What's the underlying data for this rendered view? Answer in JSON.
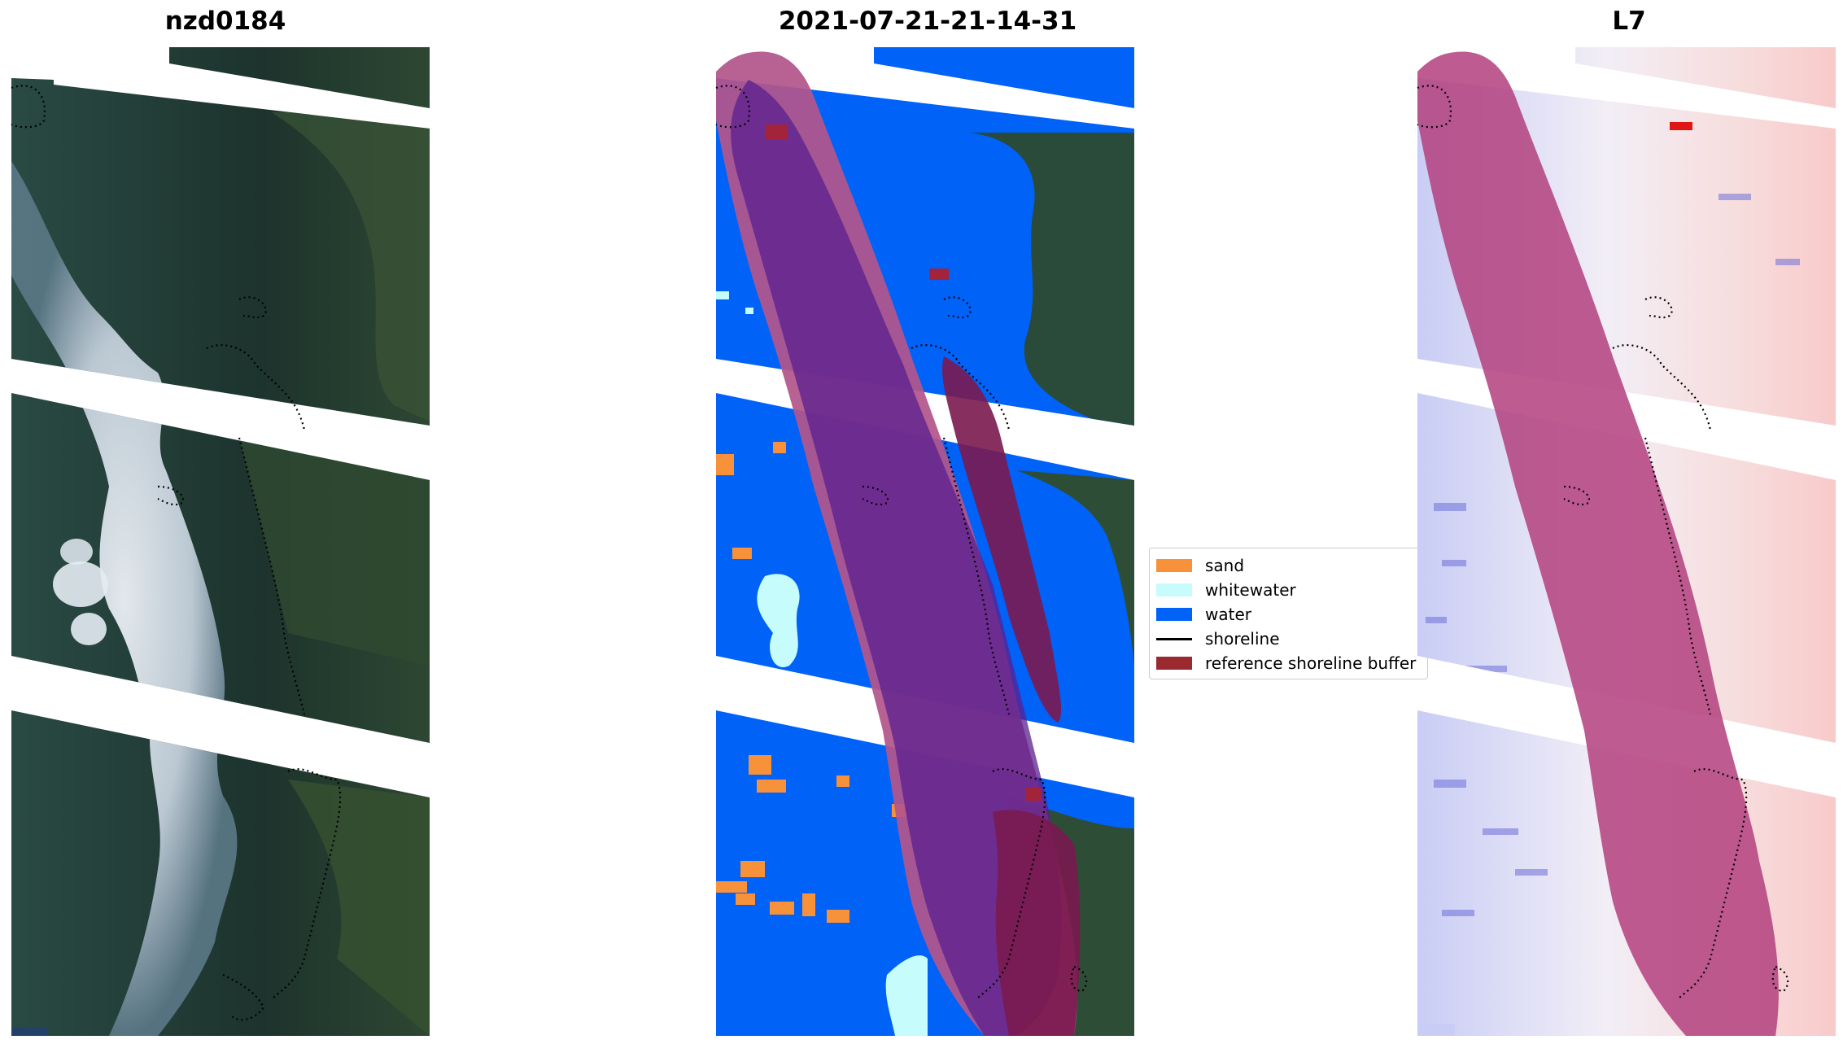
{
  "panels": [
    {
      "title": "nzd0184",
      "type": "rgb"
    },
    {
      "title": "2021-07-21-21-14-31",
      "type": "classified"
    },
    {
      "title": "L7",
      "type": "index"
    }
  ],
  "legend": {
    "items": [
      {
        "label": "sand",
        "color": "#f7913a",
        "kind": "patch"
      },
      {
        "label": "whitewater",
        "color": "#c6fcfc",
        "kind": "patch"
      },
      {
        "label": "water",
        "color": "#0062f7",
        "kind": "patch"
      },
      {
        "label": "shoreline",
        "color": "#000000",
        "kind": "line"
      },
      {
        "label": "reference shoreline buffer",
        "color": "#9b2a30",
        "kind": "patch"
      }
    ]
  },
  "colors": {
    "buffer": "#c0366e",
    "buffer_dark": "#7a1a3e",
    "forest": "#1f3a33",
    "forest_light": "#3b5a3c",
    "cloud": "#dfe8f0",
    "index_blue": "#c8ccf4",
    "index_red": "#f6c6c6"
  }
}
